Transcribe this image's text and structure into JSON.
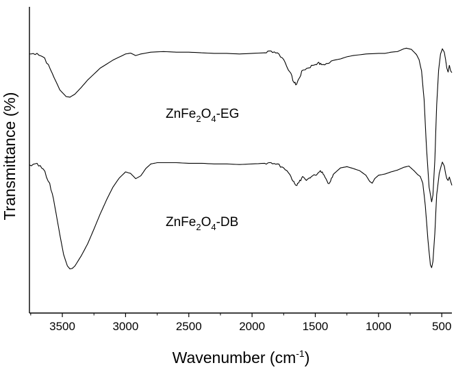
{
  "chart_data": {
    "type": "line",
    "title": "",
    "xlabel": "Wavenumber (cm",
    "xlabel_sup": "-1",
    "xlabel_end": ")",
    "ylabel": "Transmittance (%)",
    "x_reversed": true,
    "xlim": [
      3760,
      420
    ],
    "ylim": [
      0,
      100
    ],
    "y_ticks_shown": false,
    "grid": false,
    "x_ticks": [
      "3500",
      "3000",
      "2500",
      "2000",
      "1500",
      "1000",
      "500"
    ],
    "series": [
      {
        "name_parts": [
          "ZnFe",
          "2",
          "O",
          "4",
          "-EG"
        ],
        "color": "#000000",
        "points": [
          [
            3760,
            84.6
          ],
          [
            3700,
            84.8
          ],
          [
            3640,
            83.3
          ],
          [
            3580,
            78.3
          ],
          [
            3520,
            72.9
          ],
          [
            3470,
            70.7
          ],
          [
            3440,
            70.5
          ],
          [
            3400,
            71.5
          ],
          [
            3350,
            73.7
          ],
          [
            3300,
            76.1
          ],
          [
            3200,
            80.0
          ],
          [
            3100,
            82.6
          ],
          [
            3000,
            84.6
          ],
          [
            2960,
            84.9
          ],
          [
            2920,
            84.1
          ],
          [
            2880,
            84.6
          ],
          [
            2800,
            85.2
          ],
          [
            2700,
            85.4
          ],
          [
            2600,
            85.2
          ],
          [
            2500,
            85.2
          ],
          [
            2400,
            85.0
          ],
          [
            2300,
            84.8
          ],
          [
            2200,
            84.8
          ],
          [
            2100,
            84.6
          ],
          [
            2000,
            84.8
          ],
          [
            1900,
            85.0
          ],
          [
            1850,
            85.6
          ],
          [
            1800,
            85.0
          ],
          [
            1750,
            82.8
          ],
          [
            1700,
            78.7
          ],
          [
            1670,
            75.4
          ],
          [
            1650,
            74.6
          ],
          [
            1630,
            76.5
          ],
          [
            1600,
            79.3
          ],
          [
            1560,
            80.0
          ],
          [
            1520,
            80.9
          ],
          [
            1480,
            81.7
          ],
          [
            1450,
            81.1
          ],
          [
            1400,
            81.5
          ],
          [
            1350,
            82.6
          ],
          [
            1300,
            83.0
          ],
          [
            1250,
            83.7
          ],
          [
            1200,
            84.1
          ],
          [
            1100,
            84.6
          ],
          [
            1000,
            84.8
          ],
          [
            950,
            84.8
          ],
          [
            900,
            85.2
          ],
          [
            850,
            85.4
          ],
          [
            800,
            86.3
          ],
          [
            780,
            86.5
          ],
          [
            740,
            86.1
          ],
          [
            700,
            84.4
          ],
          [
            680,
            82.8
          ],
          [
            660,
            79.1
          ],
          [
            640,
            69.8
          ],
          [
            620,
            53.3
          ],
          [
            600,
            41.1
          ],
          [
            580,
            36.3
          ],
          [
            570,
            38.5
          ],
          [
            555,
            50.0
          ],
          [
            540,
            68.0
          ],
          [
            525,
            79.3
          ],
          [
            510,
            84.6
          ],
          [
            495,
            86.3
          ],
          [
            480,
            85.2
          ],
          [
            470,
            82.8
          ],
          [
            460,
            80.0
          ],
          [
            450,
            78.7
          ],
          [
            440,
            80.9
          ],
          [
            430,
            79.1
          ],
          [
            420,
            78.5
          ]
        ]
      },
      {
        "name_parts": [
          "ZnFe",
          "2",
          "O",
          "4",
          "-DB"
        ],
        "color": "#000000",
        "points": [
          [
            3760,
            48.4
          ],
          [
            3700,
            48.9
          ],
          [
            3650,
            47.0
          ],
          [
            3600,
            42.4
          ],
          [
            3560,
            35.0
          ],
          [
            3520,
            25.7
          ],
          [
            3490,
            19.1
          ],
          [
            3460,
            15.4
          ],
          [
            3440,
            14.4
          ],
          [
            3420,
            14.6
          ],
          [
            3400,
            15.4
          ],
          [
            3350,
            18.7
          ],
          [
            3300,
            22.6
          ],
          [
            3250,
            27.4
          ],
          [
            3200,
            32.4
          ],
          [
            3150,
            37.0
          ],
          [
            3100,
            41.1
          ],
          [
            3050,
            44.1
          ],
          [
            3000,
            46.1
          ],
          [
            2960,
            45.6
          ],
          [
            2920,
            43.9
          ],
          [
            2880,
            44.8
          ],
          [
            2840,
            47.2
          ],
          [
            2800,
            48.7
          ],
          [
            2750,
            49.1
          ],
          [
            2600,
            49.1
          ],
          [
            2500,
            48.9
          ],
          [
            2400,
            48.9
          ],
          [
            2300,
            48.7
          ],
          [
            2200,
            48.7
          ],
          [
            2100,
            48.5
          ],
          [
            2000,
            48.7
          ],
          [
            1900,
            48.9
          ],
          [
            1850,
            49.1
          ],
          [
            1800,
            48.7
          ],
          [
            1750,
            47.4
          ],
          [
            1700,
            45.2
          ],
          [
            1670,
            43.0
          ],
          [
            1650,
            41.7
          ],
          [
            1630,
            42.6
          ],
          [
            1600,
            44.6
          ],
          [
            1570,
            43.3
          ],
          [
            1540,
            44.1
          ],
          [
            1500,
            45.0
          ],
          [
            1460,
            46.5
          ],
          [
            1430,
            45.0
          ],
          [
            1400,
            42.4
          ],
          [
            1380,
            43.0
          ],
          [
            1350,
            45.6
          ],
          [
            1300,
            47.4
          ],
          [
            1250,
            47.8
          ],
          [
            1200,
            47.2
          ],
          [
            1150,
            46.5
          ],
          [
            1100,
            45.0
          ],
          [
            1070,
            43.0
          ],
          [
            1050,
            42.4
          ],
          [
            1030,
            43.9
          ],
          [
            1000,
            45.0
          ],
          [
            950,
            45.4
          ],
          [
            900,
            46.1
          ],
          [
            850,
            46.7
          ],
          [
            800,
            47.6
          ],
          [
            760,
            48.0
          ],
          [
            720,
            46.5
          ],
          [
            690,
            45.2
          ],
          [
            670,
            44.6
          ],
          [
            650,
            42.4
          ],
          [
            630,
            35.0
          ],
          [
            610,
            24.2
          ],
          [
            590,
            15.7
          ],
          [
            580,
            14.8
          ],
          [
            570,
            16.8
          ],
          [
            555,
            26.1
          ],
          [
            540,
            38.7
          ],
          [
            520,
            45.6
          ],
          [
            505,
            48.0
          ],
          [
            495,
            49.3
          ],
          [
            480,
            48.0
          ],
          [
            470,
            45.6
          ],
          [
            460,
            43.9
          ],
          [
            450,
            43.3
          ],
          [
            440,
            44.4
          ],
          [
            430,
            43.0
          ],
          [
            420,
            41.7
          ]
        ]
      }
    ]
  }
}
